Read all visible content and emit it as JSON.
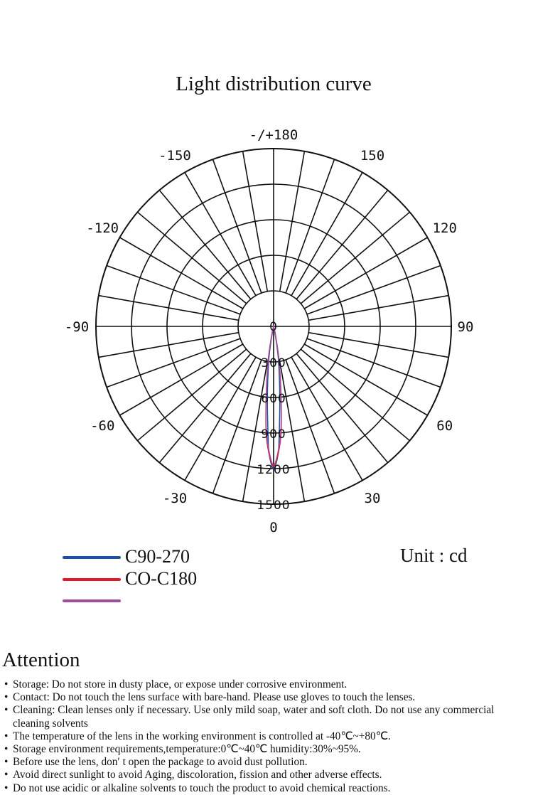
{
  "title": "Light distribution curve",
  "chart_data": {
    "type": "polar",
    "title": "Light distribution curve",
    "unit_label": "Unit : cd",
    "angle_labels": [
      {
        "angle": 0,
        "text": "0"
      },
      {
        "angle": 30,
        "text": "30"
      },
      {
        "angle": 60,
        "text": "60"
      },
      {
        "angle": 90,
        "text": "90"
      },
      {
        "angle": 120,
        "text": "120"
      },
      {
        "angle": 150,
        "text": "150"
      },
      {
        "angle": 180,
        "text": "-/+180"
      },
      {
        "angle": -150,
        "text": "-150"
      },
      {
        "angle": -120,
        "text": "-120"
      },
      {
        "angle": -90,
        "text": "-90"
      },
      {
        "angle": -60,
        "text": "-60"
      },
      {
        "angle": -30,
        "text": "-30"
      }
    ],
    "radial_ticks": [
      0,
      300,
      600,
      900,
      1200,
      1500
    ],
    "radial_max": 1500,
    "angle_grid_step": 10,
    "grid": true,
    "series": [
      {
        "name": "C90-270",
        "color": "#1f4fa0",
        "angles": [
          0,
          2,
          3,
          5,
          8,
          10,
          12
        ],
        "values": [
          1200,
          1080,
          900,
          600,
          300,
          120,
          0
        ]
      },
      {
        "name": "CO-C180",
        "color": "#e0192a",
        "angles": [
          0,
          2,
          4,
          6,
          9,
          12,
          14
        ],
        "values": [
          1180,
          1080,
          900,
          600,
          300,
          80,
          0
        ]
      },
      {
        "name": "",
        "color": "#a04d9e",
        "angles": [
          0,
          2,
          4,
          6,
          9,
          12,
          14
        ],
        "values": [
          1170,
          1060,
          880,
          590,
          290,
          70,
          0
        ]
      }
    ],
    "legend_placement": "bottom-left"
  },
  "attention": {
    "heading": "Attention",
    "items": [
      "Storage: Do not store in dusty place, or expose under corrosive environment.",
      "Contact: Do not touch the lens surface with bare-hand. Please use gloves to touch the lenses.",
      "Cleaning: Clean lenses only if necessary. Use only mild soap, water and soft cloth. Do not use any commercial cleaning solvents",
      "The temperature of the lens in the working environment is controlled at -40℃~+80℃.",
      "Storage environment requirements,temperature:0℃~40℃ humidity:30%~95%.",
      "Before use the lens, don′ t open the package to avoid dust pollution.",
      "Avoid direct sunlight to avoid Aging, discoloration, fission and other adverse effects.",
      "Do not use acidic or alkaline solvents to touch the product to avoid  chemical reactions."
    ]
  }
}
